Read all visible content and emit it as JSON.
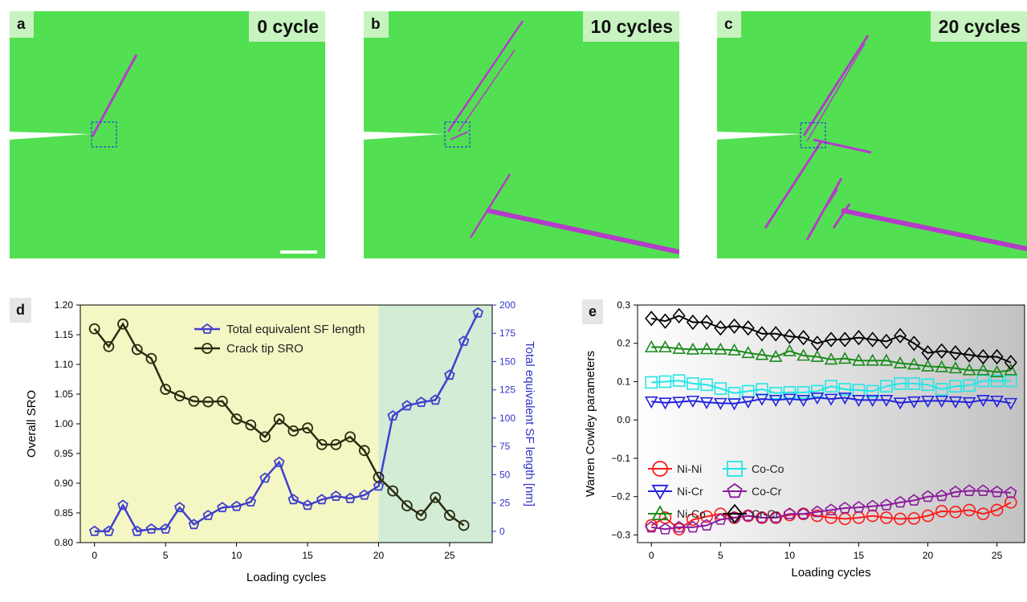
{
  "panels": {
    "a": {
      "tag": "a",
      "cycle_label": "0 cycle"
    },
    "b": {
      "tag": "b",
      "cycle_label": "10 cycles"
    },
    "c": {
      "tag": "c",
      "cycle_label": "20 cycles"
    },
    "d": {
      "tag": "d"
    },
    "e": {
      "tag": "e"
    }
  },
  "colors": {
    "atoms_bg": "#52e052",
    "stacking_fault": "#b43cc8",
    "box": "#2244dd"
  },
  "chart_data": [
    {
      "type": "line",
      "panel": "d",
      "xlabel": "Loading cycles",
      "ylabel": "Overall SRO",
      "y2label": "Total equivalent SF length [nm]",
      "xlim": [
        -1,
        28
      ],
      "ylim": [
        0.8,
        1.2
      ],
      "y2lim": [
        -10,
        200
      ],
      "xticks": [
        0,
        5,
        10,
        15,
        20,
        25
      ],
      "yticks": [
        0.8,
        0.85,
        0.9,
        0.95,
        1.0,
        1.05,
        1.1,
        1.15,
        1.2
      ],
      "y2ticks": [
        0,
        25,
        50,
        75,
        100,
        125,
        150,
        175,
        200
      ],
      "regions": [
        {
          "from": -1,
          "to": 20,
          "color": "#f4f7c4"
        },
        {
          "from": 20,
          "to": 28,
          "color": "#d2ecd6"
        }
      ],
      "legend_position": "top-center",
      "series": [
        {
          "name": "Total equivalent SF length",
          "axis": "right",
          "color": "#4040cc",
          "marker": "pentagon",
          "x": [
            0,
            1,
            2,
            3,
            4,
            5,
            6,
            7,
            8,
            9,
            10,
            11,
            12,
            13,
            14,
            15,
            16,
            17,
            18,
            19,
            20,
            21,
            22,
            23,
            24,
            25,
            26,
            27
          ],
          "values": [
            0,
            0,
            23,
            0,
            2,
            2,
            21,
            6,
            14,
            21,
            22,
            26,
            47,
            61,
            28,
            23,
            28,
            31,
            29,
            32,
            40,
            102,
            111,
            114,
            116,
            138,
            168,
            193
          ]
        },
        {
          "name": "Crack tip SRO",
          "axis": "left",
          "color": "#2b2b10",
          "marker": "circle",
          "x": [
            0,
            1,
            2,
            3,
            4,
            5,
            6,
            7,
            8,
            9,
            10,
            11,
            12,
            13,
            14,
            15,
            16,
            17,
            18,
            19,
            20,
            21,
            22,
            23,
            24,
            25,
            26
          ],
          "values": [
            1.16,
            1.13,
            1.168,
            1.125,
            1.11,
            1.058,
            1.047,
            1.038,
            1.037,
            1.038,
            1.008,
            0.998,
            0.978,
            1.008,
            0.988,
            0.993,
            0.965,
            0.965,
            0.978,
            0.955,
            0.91,
            0.887,
            0.862,
            0.846,
            0.876,
            0.846,
            0.829
          ]
        }
      ]
    },
    {
      "type": "line",
      "panel": "e",
      "xlabel": "Loading cycles",
      "ylabel": "Warren Cowley parameters",
      "xlim": [
        -1,
        27
      ],
      "ylim": [
        -0.32,
        0.3
      ],
      "xticks": [
        0,
        5,
        10,
        15,
        20,
        25
      ],
      "yticks": [
        -0.3,
        -0.2,
        -0.1,
        0.0,
        0.1,
        0.2,
        0.3
      ],
      "legend_position": "lower-left",
      "x": [
        0,
        1,
        2,
        3,
        4,
        5,
        6,
        7,
        8,
        9,
        10,
        11,
        12,
        13,
        14,
        15,
        16,
        17,
        18,
        19,
        20,
        21,
        22,
        23,
        24,
        25,
        26
      ],
      "series": [
        {
          "name": "Ni-Ni",
          "color": "#ff1a1a",
          "marker": "circle",
          "values": [
            -0.275,
            -0.255,
            -0.285,
            -0.26,
            -0.252,
            -0.245,
            -0.255,
            -0.25,
            -0.255,
            -0.255,
            -0.248,
            -0.245,
            -0.25,
            -0.255,
            -0.258,
            -0.255,
            -0.25,
            -0.255,
            -0.258,
            -0.257,
            -0.25,
            -0.238,
            -0.24,
            -0.235,
            -0.245,
            -0.235,
            -0.215
          ]
        },
        {
          "name": "Co-Co",
          "color": "#22e6e6",
          "marker": "square",
          "values": [
            0.098,
            0.1,
            0.103,
            0.095,
            0.092,
            0.082,
            0.07,
            0.075,
            0.08,
            0.07,
            0.072,
            0.072,
            0.075,
            0.088,
            0.08,
            0.078,
            0.075,
            0.088,
            0.095,
            0.095,
            0.092,
            0.08,
            0.088,
            0.09,
            0.102,
            0.102,
            0.102
          ]
        },
        {
          "name": "Ni-Cr",
          "color": "#2222e0",
          "marker": "triangle-down",
          "values": [
            0.048,
            0.045,
            0.047,
            0.05,
            0.046,
            0.044,
            0.043,
            0.048,
            0.055,
            0.052,
            0.055,
            0.052,
            0.058,
            0.055,
            0.058,
            0.052,
            0.052,
            0.052,
            0.045,
            0.048,
            0.05,
            0.05,
            0.048,
            0.046,
            0.052,
            0.05,
            0.044
          ]
        },
        {
          "name": "Co-Cr",
          "color": "#8b1a9b",
          "marker": "pentagon",
          "values": [
            -0.28,
            -0.285,
            -0.28,
            -0.28,
            -0.275,
            -0.26,
            -0.255,
            -0.25,
            -0.255,
            -0.255,
            -0.245,
            -0.245,
            -0.24,
            -0.235,
            -0.23,
            -0.228,
            -0.225,
            -0.222,
            -0.215,
            -0.21,
            -0.2,
            -0.198,
            -0.188,
            -0.185,
            -0.185,
            -0.188,
            -0.19
          ]
        },
        {
          "name": "Ni-Co",
          "color": "#1a8a1a",
          "marker": "triangle-up",
          "values": [
            0.19,
            0.19,
            0.186,
            0.184,
            0.185,
            0.184,
            0.182,
            0.175,
            0.17,
            0.165,
            0.18,
            0.168,
            0.165,
            0.158,
            0.16,
            0.155,
            0.155,
            0.155,
            0.148,
            0.145,
            0.14,
            0.138,
            0.135,
            0.13,
            0.13,
            0.125,
            0.13
          ]
        },
        {
          "name": "Cr-Cr",
          "color": "#000000",
          "marker": "diamond",
          "values": [
            0.265,
            0.258,
            0.272,
            0.255,
            0.255,
            0.24,
            0.245,
            0.24,
            0.225,
            0.225,
            0.218,
            0.215,
            0.2,
            0.21,
            0.21,
            0.215,
            0.21,
            0.205,
            0.22,
            0.2,
            0.175,
            0.18,
            0.175,
            0.17,
            0.165,
            0.165,
            0.15
          ]
        }
      ]
    }
  ]
}
